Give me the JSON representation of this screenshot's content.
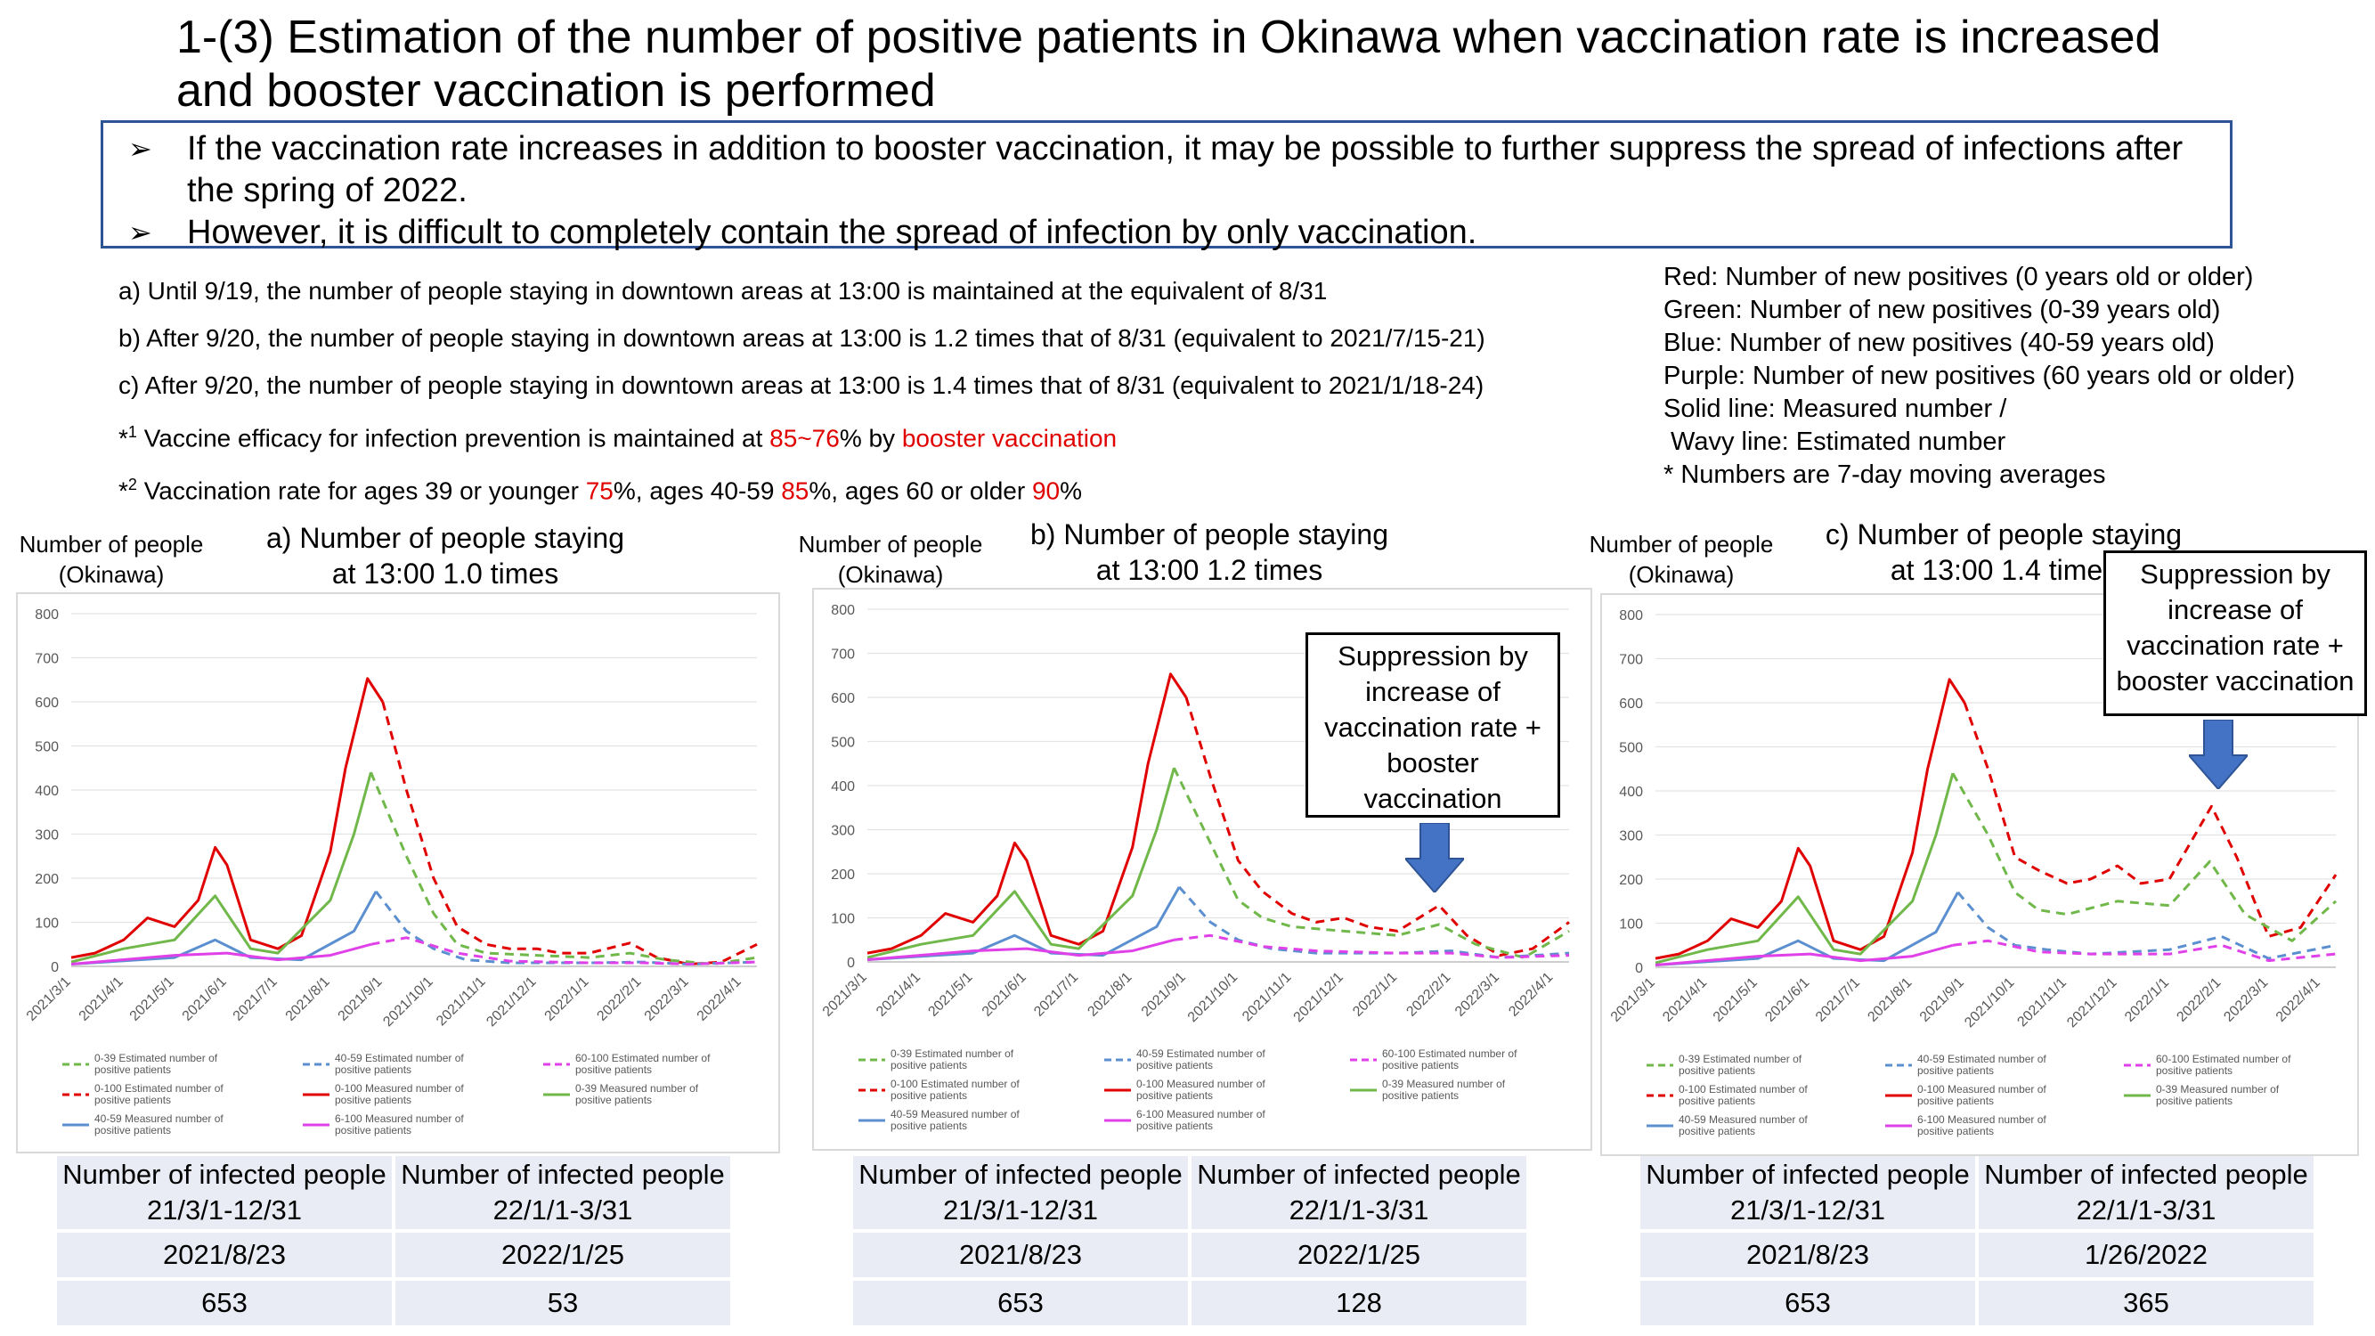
{
  "header": {
    "title_line1": "1-(3) Estimation of the number of positive patients in Okinawa when vaccination rate is increased",
    "title_line2": "and booster vaccination is performed"
  },
  "summary": {
    "bullet1_line1": "If the vaccination rate increases in addition to booster vaccination, it may be possible to further suppress the spread of infections after",
    "bullet1_line2": "the spring of 2022.",
    "bullet2": "However, it is difficult to completely contain the spread of infection by only vaccination."
  },
  "conditions": {
    "a": "a) Until 9/19, the number of people staying in downtown areas at 13:00 is maintained at the equivalent of 8/31",
    "b": "b) After 9/20, the number of people staying in downtown areas at 13:00 is 1.2 times that of 8/31 (equivalent to 2021/7/15-21)",
    "c": "c) After 9/20, the number of people staying in downtown areas at 13:00 is 1.4 times that of 8/31 (equivalent to 2021/1/18-24)",
    "note1": {
      "mark": "*",
      "sup": "1",
      "text_a": " Vaccine efficacy for infection prevention is maintained at ",
      "red1": "85~76",
      "text_b": "% by ",
      "red2": "booster vaccination"
    },
    "note2": {
      "mark": "*",
      "sup": "2",
      "text_a": " Vaccination rate for ages 39 or younger ",
      "red1": "75",
      "text_b": "%, ages 40-59 ",
      "red2": "85",
      "text_c": "%, ages 60 or older ",
      "red3": "90",
      "text_d": "%"
    }
  },
  "legend_key": [
    "Red: Number of new positives (0 years old or older)",
    "Green: Number of new positives (0-39 years old)",
    "Blue: Number of new positives (40-59 years old)",
    "Purple: Number of new positives (60 years old or older)",
    "Solid line: Measured number /",
    " Wavy line: Estimated number",
    "* Numbers are 7-day moving averages"
  ],
  "colors": {
    "red": "#e00000",
    "green": "#70b84a",
    "blue": "#5b8fd0",
    "purple": "#e040e8",
    "box_border": "#2f5496",
    "arrow": "#4472c4",
    "table_bg": "#e9ecf5"
  },
  "y_axis_caption_line1": "Number of people",
  "y_axis_caption_line2": "(Okinawa)",
  "panels": [
    {
      "title_line1": "a) Number of people staying",
      "title_line2": "at 13:00 1.0 times",
      "callout": "",
      "table": {
        "h1": "Number of infected people 21/3/1-12/31",
        "h2": "Number of infected people 22/1/1-3/31",
        "d1": "2021/8/23",
        "d2": "2022/1/25",
        "v1": "653",
        "v2": "53"
      }
    },
    {
      "title_line1": "b) Number of people staying",
      "title_line2": "at 13:00 1.2 times",
      "callout": "Suppression by increase of vaccination rate + booster vaccination",
      "table": {
        "h1": "Number of infected people 21/3/1-12/31",
        "h2": "Number of infected people 22/1/1-3/31",
        "d1": "2021/8/23",
        "d2": "2022/1/25",
        "v1": "653",
        "v2": "128"
      }
    },
    {
      "title_line1": "c) Number of people staying",
      "title_line2": "at 13:00 1.4 times",
      "callout": "Suppression by increase of vaccination rate + booster vaccination",
      "table": {
        "h1": "Number of infected people 21/3/1-12/31",
        "h2": "Number of infected people 22/1/1-3/31",
        "d1": "2021/8/23",
        "d2": "1/26/2022",
        "v1": "653",
        "v2": "365"
      }
    }
  ],
  "chart_legend": [
    {
      "label": "0-39 Estimated number of positive patients",
      "color": "#70b84a",
      "dashed": true
    },
    {
      "label": "40-59 Estimated number of positive patients",
      "color": "#5b8fd0",
      "dashed": true
    },
    {
      "label": "60-100 Estimated number of positive patients",
      "color": "#e040e8",
      "dashed": true
    },
    {
      "label": "0-100 Estimated number of positive patients",
      "color": "#e00000",
      "dashed": true
    },
    {
      "label": "0-100 Measured number of positive patients",
      "color": "#e00000",
      "dashed": false
    },
    {
      "label": "0-39 Measured number of positive patients",
      "color": "#70b84a",
      "dashed": false
    },
    {
      "label": "40-59 Measured number of positive patients",
      "color": "#5b8fd0",
      "dashed": false
    },
    {
      "label": "6-100 Measured number of positive patients",
      "color": "#e040e8",
      "dashed": false
    }
  ],
  "chart_data": [
    {
      "type": "line",
      "ylim": [
        0,
        800
      ],
      "yticks": [
        0,
        100,
        200,
        300,
        400,
        500,
        600,
        700,
        800
      ],
      "xlim": [
        "2021/3/1",
        "2022/4/10"
      ],
      "xticks": [
        "2021/3/1",
        "2021/4/1",
        "2021/5/1",
        "2021/6/1",
        "2021/7/1",
        "2021/8/1",
        "2021/9/1",
        "2021/10/1",
        "2021/11/1",
        "2021/12/1",
        "2022/1/1",
        "2022/2/1",
        "2022/3/1",
        "2022/4/1"
      ],
      "series": [
        {
          "name": "0-100 Measured number of positive patients",
          "x": [
            "2021/3/1",
            "2021/3/15",
            "2021/4/1",
            "2021/4/15",
            "2021/5/1",
            "2021/5/15",
            "2021/5/25",
            "2021/6/1",
            "2021/6/15",
            "2021/7/1",
            "2021/7/15",
            "2021/8/1",
            "2021/8/10",
            "2021/8/23",
            "2021/9/1"
          ],
          "y": [
            20,
            30,
            60,
            110,
            90,
            150,
            270,
            230,
            60,
            40,
            70,
            260,
            450,
            653,
            600
          ]
        },
        {
          "name": "0-100 Estimated number of positive patients",
          "x": [
            "2021/9/1",
            "2021/9/15",
            "2021/10/1",
            "2021/10/15",
            "2021/11/1",
            "2021/11/15",
            "2021/12/1",
            "2021/12/15",
            "2022/1/1",
            "2022/1/25",
            "2022/2/10",
            "2022/3/1",
            "2022/3/20",
            "2022/4/10"
          ],
          "y": [
            600,
            400,
            200,
            90,
            50,
            40,
            40,
            30,
            30,
            53,
            20,
            5,
            10,
            50
          ]
        },
        {
          "name": "0-39 Measured number of positive patients",
          "x": [
            "2021/3/1",
            "2021/4/1",
            "2021/5/1",
            "2021/5/25",
            "2021/6/15",
            "2021/7/1",
            "2021/8/1",
            "2021/8/15",
            "2021/8/25"
          ],
          "y": [
            10,
            40,
            60,
            160,
            40,
            30,
            150,
            300,
            440
          ]
        },
        {
          "name": "0-39 Estimated number of positive patients",
          "x": [
            "2021/8/25",
            "2021/9/15",
            "2021/10/1",
            "2021/10/15",
            "2021/11/1",
            "2021/12/1",
            "2022/1/1",
            "2022/1/25",
            "2022/2/15",
            "2022/3/15",
            "2022/4/10"
          ],
          "y": [
            440,
            250,
            120,
            50,
            30,
            25,
            20,
            30,
            15,
            5,
            20
          ]
        },
        {
          "name": "40-59 Measured number of positive patients",
          "x": [
            "2021/3/1",
            "2021/5/1",
            "2021/5/25",
            "2021/6/15",
            "2021/7/15",
            "2021/8/15",
            "2021/8/28"
          ],
          "y": [
            5,
            20,
            60,
            20,
            15,
            80,
            170
          ]
        },
        {
          "name": "40-59 Estimated number of positive patients",
          "x": [
            "2021/8/28",
            "2021/9/15",
            "2021/10/1",
            "2021/10/20",
            "2021/11/15",
            "2022/1/1",
            "2022/2/1",
            "2022/3/1",
            "2022/4/10"
          ],
          "y": [
            170,
            80,
            40,
            15,
            8,
            8,
            10,
            5,
            10
          ]
        },
        {
          "name": "6-100 Measured number of positive patients",
          "x": [
            "2021/3/1",
            "2021/5/1",
            "2021/6/1",
            "2021/7/1",
            "2021/8/1",
            "2021/8/25"
          ],
          "y": [
            5,
            25,
            30,
            15,
            25,
            50
          ]
        },
        {
          "name": "60-100 Estimated number of positive patients",
          "x": [
            "2021/8/25",
            "2021/9/15",
            "2021/10/15",
            "2021/11/15",
            "2022/1/1",
            "2022/2/1",
            "2022/3/1",
            "2022/4/10"
          ],
          "y": [
            50,
            65,
            30,
            12,
            8,
            8,
            5,
            10
          ]
        }
      ]
    },
    {
      "type": "line",
      "ylim": [
        0,
        800
      ],
      "yticks": [
        0,
        100,
        200,
        300,
        400,
        500,
        600,
        700,
        800
      ],
      "xlim": [
        "2021/3/1",
        "2022/4/10"
      ],
      "xticks": [
        "2021/3/1",
        "2021/4/1",
        "2021/5/1",
        "2021/6/1",
        "2021/7/1",
        "2021/8/1",
        "2021/9/1",
        "2021/10/1",
        "2021/11/1",
        "2021/12/1",
        "2022/1/1",
        "2022/2/1",
        "2022/3/1",
        "2022/4/1"
      ],
      "series": [
        {
          "name": "0-100 Measured number of positive patients",
          "x": [
            "2021/3/1",
            "2021/3/15",
            "2021/4/1",
            "2021/4/15",
            "2021/5/1",
            "2021/5/15",
            "2021/5/25",
            "2021/6/1",
            "2021/6/15",
            "2021/7/1",
            "2021/7/15",
            "2021/8/1",
            "2021/8/10",
            "2021/8/23",
            "2021/9/1"
          ],
          "y": [
            20,
            30,
            60,
            110,
            90,
            150,
            270,
            230,
            60,
            40,
            70,
            260,
            450,
            653,
            600
          ]
        },
        {
          "name": "0-100 Estimated number of positive patients",
          "x": [
            "2021/9/1",
            "2021/9/15",
            "2021/10/1",
            "2021/10/15",
            "2021/11/1",
            "2021/11/15",
            "2021/12/1",
            "2021/12/15",
            "2022/1/1",
            "2022/1/25",
            "2022/2/10",
            "2022/3/1",
            "2022/3/20",
            "2022/4/10"
          ],
          "y": [
            600,
            420,
            230,
            160,
            110,
            90,
            100,
            80,
            70,
            128,
            60,
            15,
            30,
            90
          ]
        },
        {
          "name": "0-39 Measured number of positive patients",
          "x": [
            "2021/3/1",
            "2021/4/1",
            "2021/5/1",
            "2021/5/25",
            "2021/6/15",
            "2021/7/1",
            "2021/8/1",
            "2021/8/15",
            "2021/8/25"
          ],
          "y": [
            10,
            40,
            60,
            160,
            40,
            30,
            150,
            300,
            440
          ]
        },
        {
          "name": "0-39 Estimated number of positive patients",
          "x": [
            "2021/8/25",
            "2021/9/15",
            "2021/10/1",
            "2021/10/15",
            "2021/11/1",
            "2021/12/1",
            "2022/1/1",
            "2022/1/25",
            "2022/2/15",
            "2022/3/15",
            "2022/4/10"
          ],
          "y": [
            440,
            270,
            140,
            100,
            80,
            70,
            60,
            85,
            40,
            10,
            70
          ]
        },
        {
          "name": "40-59 Measured number of positive patients",
          "x": [
            "2021/3/1",
            "2021/5/1",
            "2021/5/25",
            "2021/6/15",
            "2021/7/15",
            "2021/8/15",
            "2021/8/28"
          ],
          "y": [
            5,
            20,
            60,
            20,
            15,
            80,
            170
          ]
        },
        {
          "name": "40-59 Estimated number of positive patients",
          "x": [
            "2021/8/28",
            "2021/9/15",
            "2021/10/1",
            "2021/10/20",
            "2021/11/15",
            "2022/1/1",
            "2022/2/1",
            "2022/3/1",
            "2022/4/10"
          ],
          "y": [
            170,
            90,
            50,
            30,
            20,
            20,
            25,
            10,
            20
          ]
        },
        {
          "name": "6-100 Measured number of positive patients",
          "x": [
            "2021/3/1",
            "2021/5/1",
            "2021/6/1",
            "2021/7/1",
            "2021/8/1",
            "2021/8/25"
          ],
          "y": [
            5,
            25,
            30,
            15,
            25,
            50
          ]
        },
        {
          "name": "60-100 Estimated number of positive patients",
          "x": [
            "2021/8/25",
            "2021/9/15",
            "2021/10/15",
            "2021/11/15",
            "2022/1/1",
            "2022/2/1",
            "2022/3/1",
            "2022/4/10"
          ],
          "y": [
            50,
            60,
            35,
            25,
            20,
            20,
            10,
            15
          ]
        }
      ]
    },
    {
      "type": "line",
      "ylim": [
        0,
        800
      ],
      "yticks": [
        0,
        100,
        200,
        300,
        400,
        500,
        600,
        700,
        800
      ],
      "xlim": [
        "2021/3/1",
        "2022/4/10"
      ],
      "xticks": [
        "2021/3/1",
        "2021/4/1",
        "2021/5/1",
        "2021/6/1",
        "2021/7/1",
        "2021/8/1",
        "2021/9/1",
        "2021/10/1",
        "2021/11/1",
        "2021/12/1",
        "2022/1/1",
        "2022/2/1",
        "2022/3/1",
        "2022/4/1"
      ],
      "series": [
        {
          "name": "0-100 Measured number of positive patients",
          "x": [
            "2021/3/1",
            "2021/3/15",
            "2021/4/1",
            "2021/4/15",
            "2021/5/1",
            "2021/5/15",
            "2021/5/25",
            "2021/6/1",
            "2021/6/15",
            "2021/7/1",
            "2021/7/15",
            "2021/8/1",
            "2021/8/10",
            "2021/8/23",
            "2021/9/1"
          ],
          "y": [
            20,
            30,
            60,
            110,
            90,
            150,
            270,
            230,
            60,
            40,
            70,
            260,
            450,
            653,
            600
          ]
        },
        {
          "name": "0-100 Estimated number of positive patients",
          "x": [
            "2021/9/1",
            "2021/9/15",
            "2021/10/1",
            "2021/10/15",
            "2021/11/1",
            "2021/11/15",
            "2021/12/1",
            "2021/12/15",
            "2022/1/1",
            "2022/1/26",
            "2022/2/10",
            "2022/3/1",
            "2022/3/20",
            "2022/4/10"
          ],
          "y": [
            600,
            450,
            250,
            220,
            190,
            200,
            230,
            190,
            200,
            365,
            250,
            70,
            90,
            210
          ]
        },
        {
          "name": "0-39 Measured number of positive patients",
          "x": [
            "2021/3/1",
            "2021/4/1",
            "2021/5/1",
            "2021/5/25",
            "2021/6/15",
            "2021/7/1",
            "2021/8/1",
            "2021/8/15",
            "2021/8/25"
          ],
          "y": [
            10,
            40,
            60,
            160,
            40,
            30,
            150,
            300,
            440
          ]
        },
        {
          "name": "0-39 Estimated number of positive patients",
          "x": [
            "2021/8/25",
            "2021/9/15",
            "2021/10/1",
            "2021/10/15",
            "2021/11/1",
            "2021/12/1",
            "2022/1/1",
            "2022/1/25",
            "2022/2/15",
            "2022/3/15",
            "2022/4/10"
          ],
          "y": [
            440,
            300,
            170,
            130,
            120,
            150,
            140,
            240,
            120,
            60,
            150
          ]
        },
        {
          "name": "40-59 Measured number of positive patients",
          "x": [
            "2021/3/1",
            "2021/5/1",
            "2021/5/25",
            "2021/6/15",
            "2021/7/15",
            "2021/8/15",
            "2021/8/28"
          ],
          "y": [
            5,
            20,
            60,
            20,
            15,
            80,
            170
          ]
        },
        {
          "name": "40-59 Estimated number of positive patients",
          "x": [
            "2021/8/28",
            "2021/9/15",
            "2021/10/1",
            "2021/10/20",
            "2021/11/15",
            "2022/1/1",
            "2022/2/1",
            "2022/3/1",
            "2022/4/10"
          ],
          "y": [
            170,
            90,
            50,
            40,
            30,
            40,
            70,
            20,
            50
          ]
        },
        {
          "name": "6-100 Measured number of positive patients",
          "x": [
            "2021/3/1",
            "2021/5/1",
            "2021/6/1",
            "2021/7/1",
            "2021/8/1",
            "2021/8/25"
          ],
          "y": [
            5,
            25,
            30,
            15,
            25,
            50
          ]
        },
        {
          "name": "60-100 Estimated number of positive patients",
          "x": [
            "2021/8/25",
            "2021/9/15",
            "2021/10/15",
            "2021/11/15",
            "2022/1/1",
            "2022/2/1",
            "2022/3/1",
            "2022/4/10"
          ],
          "y": [
            50,
            60,
            35,
            30,
            30,
            50,
            15,
            30
          ]
        }
      ]
    }
  ]
}
